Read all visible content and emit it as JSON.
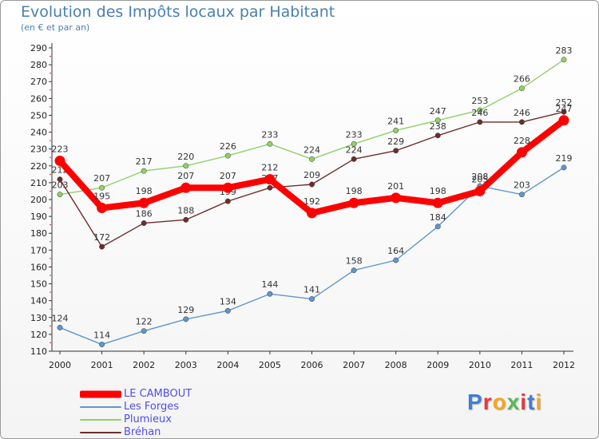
{
  "chart_data": {
    "type": "line",
    "title": "Evolution des Impôts locaux par Habitant",
    "subtitle": "(en € et par an)",
    "xlabel": "",
    "ylabel": "",
    "categories": [
      "2000",
      "2001",
      "2002",
      "2003",
      "2004",
      "2005",
      "2006",
      "2007",
      "2008",
      "2009",
      "2010",
      "2011",
      "2012"
    ],
    "ylim": [
      110,
      290
    ],
    "yticks": [
      110,
      120,
      130,
      140,
      150,
      160,
      170,
      180,
      190,
      200,
      210,
      220,
      230,
      240,
      250,
      260,
      270,
      280,
      290
    ],
    "grid": false,
    "legend_position": "bottom-left",
    "series": [
      {
        "name": "Plumieux",
        "color": "#8fd16a",
        "values": [
          203,
          207,
          217,
          220,
          226,
          233,
          224,
          233,
          241,
          247,
          253,
          266,
          283
        ]
      },
      {
        "name": "Les Forges",
        "color": "#5e97cf",
        "values": [
          124,
          114,
          122,
          129,
          134,
          144,
          141,
          158,
          164,
          184,
          208,
          203,
          219
        ]
      },
      {
        "name": "Bréhan",
        "color": "#6e2c2c",
        "values": [
          212,
          172,
          186,
          188,
          199,
          207,
          209,
          224,
          229,
          238,
          246,
          246,
          252
        ]
      },
      {
        "name": "LE CAMBOUT",
        "color": "#ff0000",
        "values": [
          223,
          195,
          198,
          207,
          207,
          212,
          192,
          198,
          201,
          198,
          205,
          228,
          247
        ]
      }
    ],
    "legend_order": [
      "LE CAMBOUT",
      "Les Forges",
      "Plumieux",
      "Bréhan"
    ]
  },
  "brand": {
    "letters": [
      "P",
      "r",
      "o",
      "x",
      "i",
      "t",
      "i"
    ],
    "colors": [
      "#3f7fd6",
      "#e8383b",
      "#f5a623",
      "#5bb85b",
      "#e8383b",
      "#3f7fd6",
      "#f5a623"
    ]
  }
}
